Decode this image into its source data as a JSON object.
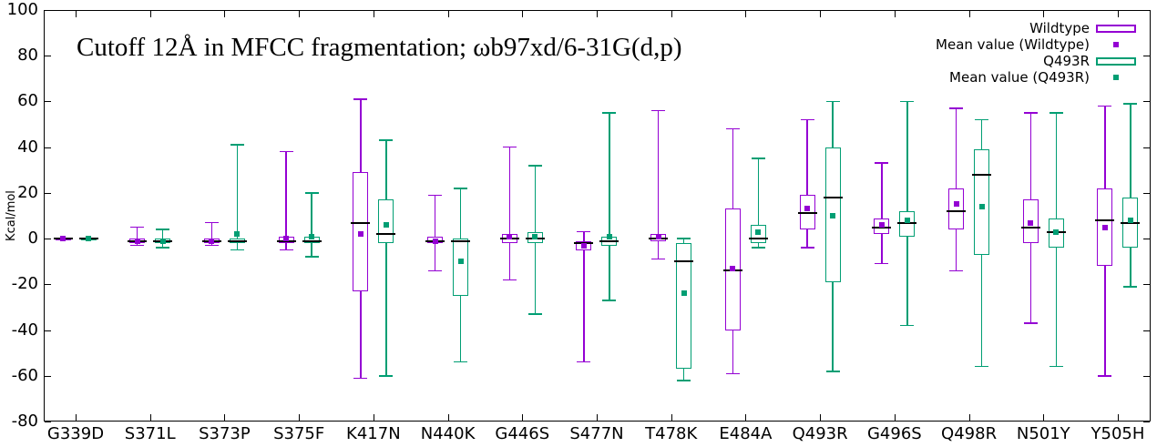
{
  "chart_data": {
    "type": "boxplot",
    "title": "Cutoff 12Å in MFCC fragmentation; ωb97xd/6-31G(d,p)",
    "ylabel": "Kcal/mol",
    "ylim": [
      -80,
      100
    ],
    "yticks": [
      100,
      80,
      60,
      40,
      20,
      0,
      -20,
      -40,
      -60,
      -80
    ],
    "grid": false,
    "legend_position": "top-right",
    "background": "#ffffff",
    "axis_color": "#000000",
    "median_color": "#000000",
    "categories": [
      "G339D",
      "S371L",
      "S373P",
      "S375F",
      "K417N",
      "N440K",
      "G446S",
      "S477N",
      "T478K",
      "E484A",
      "Q493R",
      "G496S",
      "Q498R",
      "N501Y",
      "Y505H"
    ],
    "series": [
      {
        "name": "Wildtype",
        "color": "#9400d3",
        "boxes": [
          {
            "lo": 0,
            "q1": 0,
            "med": 0,
            "q3": 0,
            "hi": 0,
            "mean": 0
          },
          {
            "lo": -3,
            "q1": -2,
            "med": -1,
            "q3": 0,
            "hi": 5,
            "mean": -1
          },
          {
            "lo": -3,
            "q1": -2,
            "med": -1,
            "q3": 0,
            "hi": 7,
            "mean": -1
          },
          {
            "lo": -5,
            "q1": -2,
            "med": -1,
            "q3": 1,
            "hi": 38,
            "mean": 0
          },
          {
            "lo": -61,
            "q1": -23,
            "med": 7,
            "q3": 29,
            "hi": 61,
            "mean": 2
          },
          {
            "lo": -14,
            "q1": -2,
            "med": -1,
            "q3": 1,
            "hi": 19,
            "mean": -1
          },
          {
            "lo": -18,
            "q1": -2,
            "med": 0,
            "q3": 2,
            "hi": 40,
            "mean": 1
          },
          {
            "lo": -54,
            "q1": -5,
            "med": -2,
            "q3": -1,
            "hi": 3,
            "mean": -3
          },
          {
            "lo": -9,
            "q1": -1,
            "med": 0,
            "q3": 2,
            "hi": 56,
            "mean": 1
          },
          {
            "lo": -59,
            "q1": -40,
            "med": -14,
            "q3": 13,
            "hi": 48,
            "mean": -13
          },
          {
            "lo": -4,
            "q1": 4,
            "med": 11,
            "q3": 19,
            "hi": 52,
            "mean": 13
          },
          {
            "lo": -11,
            "q1": 2,
            "med": 5,
            "q3": 9,
            "hi": 33,
            "mean": 6
          },
          {
            "lo": -14,
            "q1": 4,
            "med": 12,
            "q3": 22,
            "hi": 57,
            "mean": 15
          },
          {
            "lo": -37,
            "q1": -2,
            "med": 5,
            "q3": 17,
            "hi": 55,
            "mean": 7
          },
          {
            "lo": -60,
            "q1": -12,
            "med": 8,
            "q3": 22,
            "hi": 58,
            "mean": 5
          }
        ]
      },
      {
        "name": "Q493R",
        "color": "#009e73",
        "boxes": [
          {
            "lo": 0,
            "q1": 0,
            "med": 0,
            "q3": 0,
            "hi": 0,
            "mean": 0
          },
          {
            "lo": -4,
            "q1": -2,
            "med": -1,
            "q3": 0,
            "hi": 4,
            "mean": -1
          },
          {
            "lo": -5,
            "q1": -2,
            "med": -1,
            "q3": 0,
            "hi": 41,
            "mean": 2
          },
          {
            "lo": -8,
            "q1": -2,
            "med": -1,
            "q3": 1,
            "hi": 20,
            "mean": 1
          },
          {
            "lo": -60,
            "q1": -2,
            "med": 2,
            "q3": 17,
            "hi": 43,
            "mean": 6
          },
          {
            "lo": -54,
            "q1": -25,
            "med": -1,
            "q3": 0,
            "hi": 22,
            "mean": -10
          },
          {
            "lo": -33,
            "q1": -2,
            "med": 0,
            "q3": 3,
            "hi": 32,
            "mean": 1
          },
          {
            "lo": -27,
            "q1": -3,
            "med": -1,
            "q3": 1,
            "hi": 55,
            "mean": 1
          },
          {
            "lo": -62,
            "q1": -57,
            "med": -10,
            "q3": -2,
            "hi": 0,
            "mean": -24
          },
          {
            "lo": -4,
            "q1": -2,
            "med": 0,
            "q3": 6,
            "hi": 35,
            "mean": 3
          },
          {
            "lo": -58,
            "q1": -19,
            "med": 18,
            "q3": 40,
            "hi": 60,
            "mean": 10
          },
          {
            "lo": -38,
            "q1": 1,
            "med": 7,
            "q3": 12,
            "hi": 60,
            "mean": 8
          },
          {
            "lo": -56,
            "q1": -7,
            "med": 28,
            "q3": 39,
            "hi": 52,
            "mean": 14
          },
          {
            "lo": -56,
            "q1": -4,
            "med": 3,
            "q3": 9,
            "hi": 55,
            "mean": 3
          },
          {
            "lo": -21,
            "q1": -4,
            "med": 7,
            "q3": 18,
            "hi": 59,
            "mean": 8
          }
        ]
      }
    ],
    "legend": [
      {
        "label": "Wildtype",
        "type": "box",
        "color": "#9400d3"
      },
      {
        "label": "Mean value (Wildtype)",
        "type": "point",
        "color": "#9400d3"
      },
      {
        "label": "Q493R",
        "type": "box",
        "color": "#009e73"
      },
      {
        "label": "Mean value (Q493R)",
        "type": "point",
        "color": "#009e73"
      }
    ]
  }
}
